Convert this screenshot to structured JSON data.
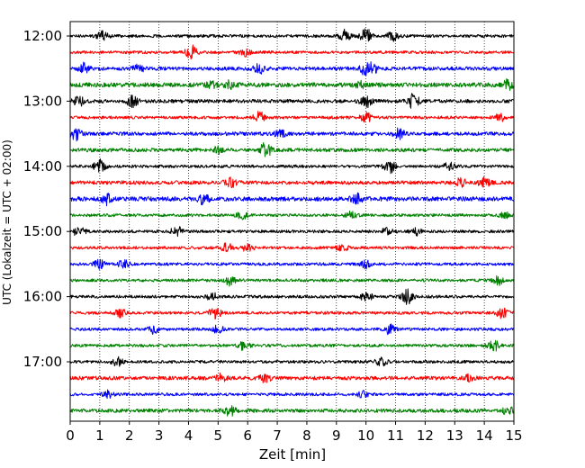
{
  "chart_data": {
    "type": "line",
    "title": "",
    "xlabel": "Zeit  [min]",
    "ylabel": "UTC (Lokalzeit = UTC + 02:00)",
    "xlim": [
      0,
      15
    ],
    "x_ticks": [
      0,
      1,
      2,
      3,
      4,
      5,
      6,
      7,
      8,
      9,
      10,
      11,
      12,
      13,
      14,
      15
    ],
    "y_tick_labels": [
      "12:00",
      "13:00",
      "14:00",
      "15:00",
      "16:00",
      "17:00"
    ],
    "grid": "vertical dotted",
    "trace_colors": [
      "#000000",
      "#ff0000",
      "#0000ff",
      "#008000"
    ],
    "series": [
      {
        "start": "12:00",
        "base": 0.2,
        "events": [
          [
            1.1,
            0.6
          ],
          [
            9.3,
            0.8
          ],
          [
            10.0,
            1.0
          ],
          [
            10.9,
            0.6
          ]
        ]
      },
      {
        "start": "12:15",
        "base": 0.2,
        "events": [
          [
            4.1,
            1.0
          ],
          [
            5.9,
            0.5
          ]
        ]
      },
      {
        "start": "12:30",
        "base": 0.25,
        "events": [
          [
            0.5,
            0.8
          ],
          [
            2.3,
            0.5
          ],
          [
            6.4,
            0.6
          ],
          [
            10.0,
            0.9
          ],
          [
            10.2,
            0.7
          ]
        ]
      },
      {
        "start": "12:45",
        "base": 0.3,
        "events": [
          [
            4.8,
            0.4
          ],
          [
            5.4,
            0.5
          ],
          [
            9.8,
            0.4
          ],
          [
            14.8,
            0.6
          ]
        ]
      },
      {
        "start": "13:00",
        "base": 0.25,
        "events": [
          [
            0.3,
            0.6
          ],
          [
            2.1,
            0.7
          ],
          [
            10.0,
            0.8
          ],
          [
            11.6,
            1.0
          ]
        ]
      },
      {
        "start": "13:15",
        "base": 0.2,
        "events": [
          [
            6.4,
            0.9
          ],
          [
            10.0,
            0.6
          ],
          [
            14.5,
            0.6
          ]
        ]
      },
      {
        "start": "13:30",
        "base": 0.25,
        "events": [
          [
            0.2,
            0.8
          ],
          [
            7.1,
            0.4
          ],
          [
            11.1,
            0.7
          ]
        ]
      },
      {
        "start": "13:45",
        "base": 0.25,
        "events": [
          [
            5.0,
            0.5
          ],
          [
            6.6,
            1.0
          ]
        ]
      },
      {
        "start": "14:00",
        "base": 0.2,
        "events": [
          [
            1.0,
            0.9
          ],
          [
            10.8,
            0.9
          ],
          [
            12.8,
            0.5
          ]
        ]
      },
      {
        "start": "14:15",
        "base": 0.25,
        "events": [
          [
            5.4,
            0.7
          ],
          [
            13.2,
            0.5
          ],
          [
            14.0,
            0.6
          ]
        ]
      },
      {
        "start": "14:30",
        "base": 0.3,
        "events": [
          [
            1.2,
            0.7
          ],
          [
            4.5,
            0.6
          ],
          [
            9.7,
            0.6
          ]
        ]
      },
      {
        "start": "14:45",
        "base": 0.2,
        "events": [
          [
            5.8,
            0.5
          ],
          [
            9.5,
            0.5
          ],
          [
            14.7,
            0.4
          ]
        ]
      },
      {
        "start": "15:00",
        "base": 0.2,
        "events": [
          [
            0.3,
            0.7
          ],
          [
            3.6,
            0.7
          ],
          [
            10.7,
            0.5
          ],
          [
            11.7,
            0.5
          ]
        ]
      },
      {
        "start": "15:15",
        "base": 0.2,
        "events": [
          [
            5.3,
            0.6
          ],
          [
            6.0,
            0.5
          ],
          [
            9.2,
            0.5
          ]
        ]
      },
      {
        "start": "15:30",
        "base": 0.2,
        "events": [
          [
            1.0,
            0.6
          ],
          [
            1.8,
            0.5
          ],
          [
            10.0,
            0.5
          ]
        ]
      },
      {
        "start": "15:45",
        "base": 0.2,
        "events": [
          [
            5.4,
            0.7
          ],
          [
            14.5,
            0.6
          ]
        ]
      },
      {
        "start": "16:00",
        "base": 0.2,
        "events": [
          [
            4.8,
            0.5
          ],
          [
            10.0,
            0.7
          ],
          [
            11.4,
            1.0
          ]
        ]
      },
      {
        "start": "16:15",
        "base": 0.2,
        "events": [
          [
            1.7,
            0.5
          ],
          [
            4.9,
            0.9
          ],
          [
            14.6,
            0.7
          ]
        ]
      },
      {
        "start": "16:30",
        "base": 0.2,
        "events": [
          [
            2.8,
            0.6
          ],
          [
            5.0,
            0.5
          ],
          [
            10.8,
            0.7
          ]
        ]
      },
      {
        "start": "16:45",
        "base": 0.2,
        "events": [
          [
            5.9,
            0.7
          ],
          [
            14.3,
            0.8
          ]
        ]
      },
      {
        "start": "17:00",
        "base": 0.2,
        "events": [
          [
            1.6,
            0.6
          ],
          [
            10.5,
            0.6
          ]
        ]
      },
      {
        "start": "17:15",
        "base": 0.25,
        "events": [
          [
            5.1,
            0.5
          ],
          [
            6.6,
            0.6
          ],
          [
            13.5,
            0.4
          ]
        ]
      },
      {
        "start": "17:30",
        "base": 0.2,
        "events": [
          [
            1.3,
            0.5
          ],
          [
            9.9,
            0.4
          ]
        ]
      },
      {
        "start": "17:45",
        "base": 0.25,
        "events": [
          [
            5.4,
            0.7
          ],
          [
            14.8,
            0.5
          ]
        ]
      }
    ]
  }
}
